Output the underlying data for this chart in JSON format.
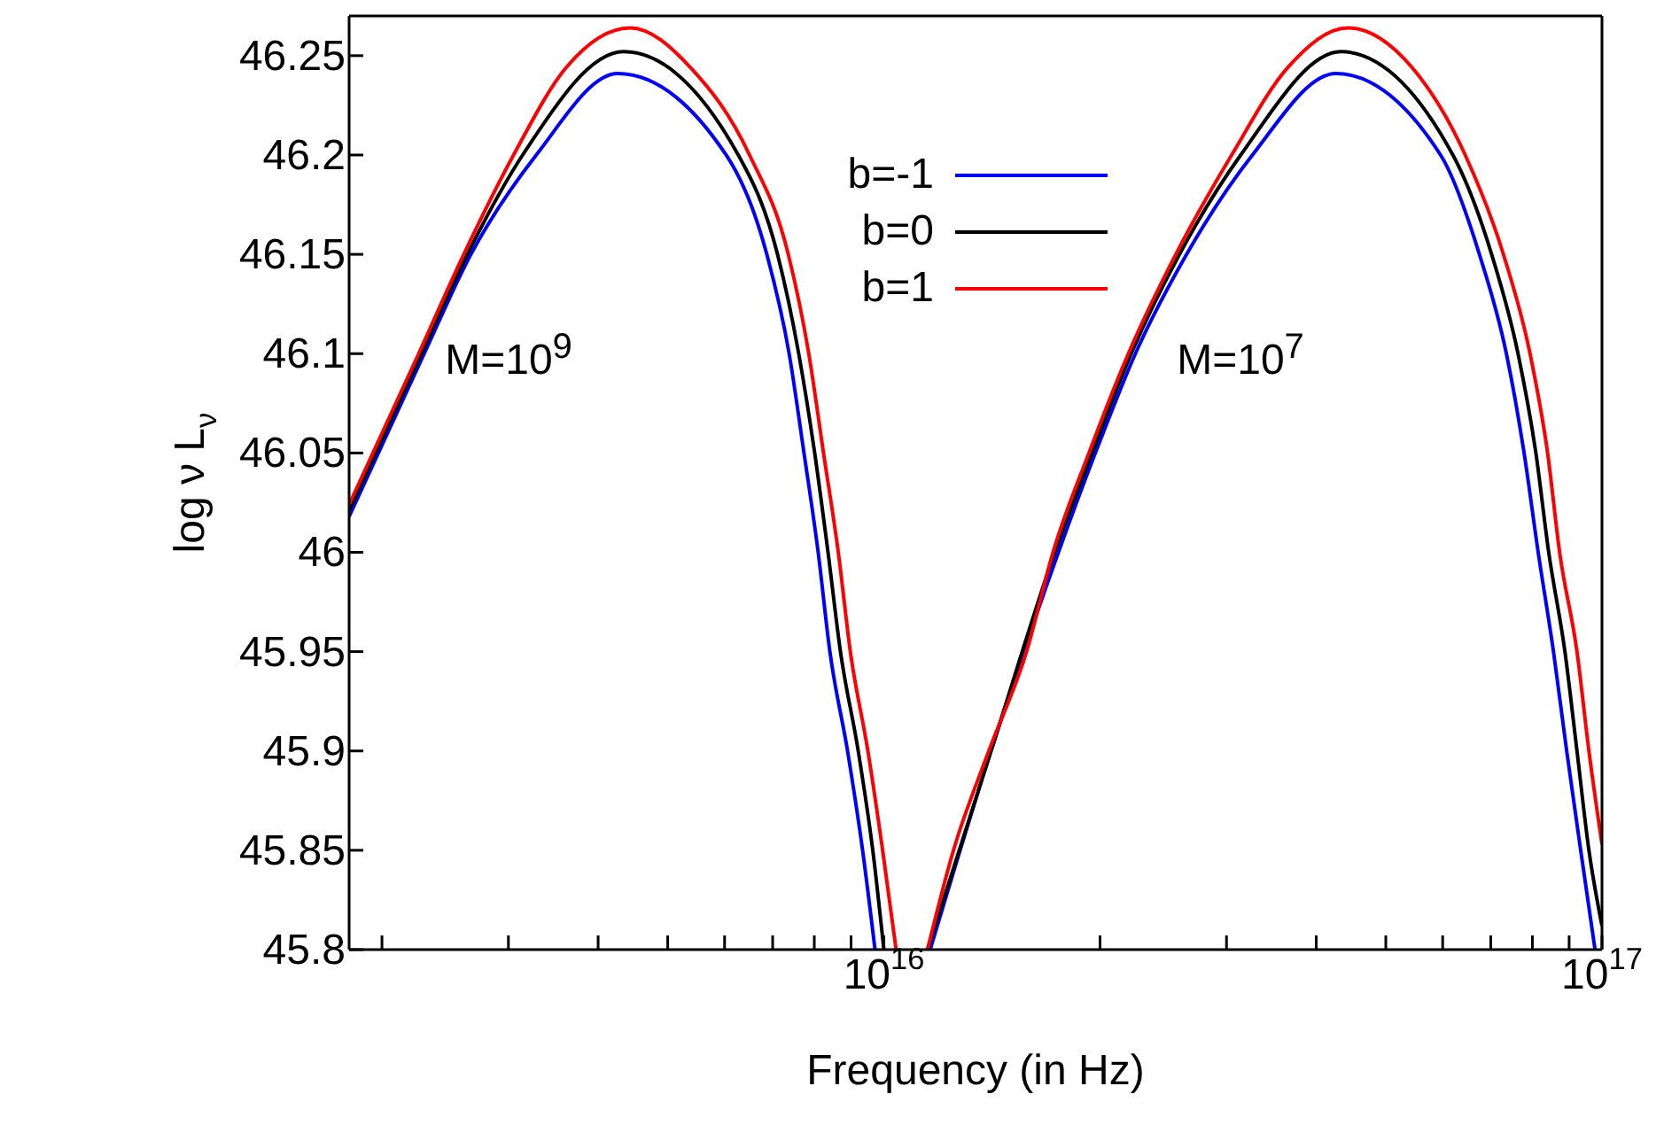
{
  "chart_data": {
    "type": "line",
    "xlabel": "Frequency (in Hz)",
    "ylabel": "log ν L$_{ν}$",
    "log": "x",
    "legend": "top",
    "marker": "none",
    "line_style": "solid",
    "xlim": [
      1800000000000000.0,
      1e+17
    ],
    "ylim": [
      45.8,
      46.27
    ],
    "xticks": [
      {
        "value": 2000000000000000.0,
        "label": null
      },
      {
        "value": 3000000000000000.0,
        "label": null
      },
      {
        "value": 4000000000000000.0,
        "label": null
      },
      {
        "value": 5000000000000000.0,
        "label": null
      },
      {
        "value": 6000000000000000.0,
        "label": null
      },
      {
        "value": 7000000000000000.0,
        "label": null
      },
      {
        "value": 8000000000000000.0,
        "label": null
      },
      {
        "value": 9000000000000000.0,
        "label": null
      },
      {
        "value": 1e+16,
        "label": "10$^{16}$"
      },
      {
        "value": 2e+16,
        "label": null
      },
      {
        "value": 3e+16,
        "label": null
      },
      {
        "value": 4e+16,
        "label": null
      },
      {
        "value": 5e+16,
        "label": null
      },
      {
        "value": 6e+16,
        "label": null
      },
      {
        "value": 7e+16,
        "label": null
      },
      {
        "value": 8e+16,
        "label": null
      },
      {
        "value": 9e+16,
        "label": null
      },
      {
        "value": 1e+17,
        "label": "10$^{17}$"
      }
    ],
    "yticks": [
      45.8,
      45.85,
      45.9,
      45.95,
      46,
      46.05,
      46.1,
      46.15,
      46.2,
      46.25
    ],
    "annotations": [
      "M=10$^{9}$",
      "M=10$^{7}$"
    ],
    "series": [
      {
        "name": "b=-1",
        "color": "#0000ff",
        "x": [
          1800000000000000.0,
          2290000000000000.0,
          2660000000000000.0,
          3280000000000000.0,
          4260000000000000.0,
          6030000000000000.0,
          6870000000000000.0,
          7380000000000000.0,
          7740000000000000.0,
          8100000000000000.0,
          8410000000000000.0,
          8900000000000000.0,
          9340000000000000.0,
          9720000000000000.0
        ],
        "values": [
          46.018,
          46.1,
          46.15,
          46.2,
          46.241,
          46.2,
          46.15,
          46.1,
          46.05,
          46,
          45.95,
          45.9,
          45.85,
          45.8
        ]
      },
      {
        "name": "b=0",
        "color": "#000000",
        "x": [
          1800000000000000.0,
          2270000000000000.0,
          2630000000000000.0,
          3140000000000000.0,
          4340000000000000.0,
          6270000000000000.0,
          7110000000000000.0,
          7610000000000000.0,
          8010000000000000.0,
          8360000000000000.0,
          8700000000000000.0,
          9210000000000000.0,
          9650000000000000.0,
          1e+16
        ],
        "values": [
          46.021,
          46.1,
          46.15,
          46.2,
          46.252,
          46.2,
          46.15,
          46.1,
          46.05,
          46,
          45.95,
          45.9,
          45.85,
          45.8
        ]
      },
      {
        "name": "b=1",
        "color": "#ff0000",
        "x": [
          1800000000000000.0,
          2250000000000000.0,
          2600000000000000.0,
          3050000000000000.0,
          3610000000000000.0,
          4430000000000000.0,
          5380000000000000.0,
          6500000000000000.0,
          7360000000000000.0,
          7860000000000000.0,
          8240000000000000.0,
          8640000000000000.0,
          8980000000000000.0,
          9500000000000000.0,
          9960000000000000.0,
          1.04e+16
        ],
        "values": [
          46.024,
          46.1,
          46.15,
          46.2,
          46.244,
          46.264,
          46.244,
          46.2,
          46.15,
          46.1,
          46.05,
          46,
          45.95,
          45.9,
          45.85,
          45.8
        ]
      },
      {
        "color": "#0000ff",
        "x": [
          1.16e+16,
          1.41e+16,
          1.75e+16,
          1.97e+16,
          2.24e+16,
          2.64e+16,
          3.26e+16,
          4.26e+16,
          5.96e+16,
          6.75e+16,
          7.36e+16,
          7.79e+16,
          8.15e+16,
          8.56e+16,
          8.93e+16,
          9.34e+16,
          9.78e+16
        ],
        "values": [
          45.8,
          45.9,
          46,
          46.05,
          46.1,
          46.15,
          46.2,
          46.241,
          46.2,
          46.15,
          46.1,
          46.05,
          46,
          45.95,
          45.9,
          45.85,
          45.8
        ]
      },
      {
        "color": "#000000",
        "x": [
          1.15e+16,
          1.41e+16,
          1.73e+16,
          1.95e+16,
          2.21e+16,
          2.58e+16,
          3.14e+16,
          4.33e+16,
          6.2e+16,
          7.02e+16,
          7.64e+16,
          8.09e+16,
          8.43e+16,
          8.88e+16,
          9.23e+16,
          9.59e+16,
          1e+17
        ],
        "values": [
          45.8,
          45.9,
          46,
          46.05,
          46.1,
          46.15,
          46.2,
          46.252,
          46.2,
          46.15,
          46.1,
          46.05,
          46,
          45.95,
          45.9,
          45.85,
          45.812
        ]
      },
      {
        "color": "#ff0000",
        "x": [
          1.15e+16,
          1.25e+16,
          1.4e+16,
          1.58e+16,
          1.72e+16,
          1.93e+16,
          2.19e+16,
          2.55e+16,
          3.05e+16,
          3.65e+16,
          4.43e+16,
          5.44e+16,
          6.45e+16,
          7.29e+16,
          7.94e+16,
          8.4e+16,
          8.73e+16,
          9.23e+16,
          9.59e+16,
          1e+17
        ],
        "values": [
          45.8,
          45.85,
          45.9,
          45.95,
          46,
          46.05,
          46.1,
          46.15,
          46.2,
          46.244,
          46.264,
          46.244,
          46.2,
          46.15,
          46.1,
          46.05,
          46,
          45.95,
          45.9,
          45.853
        ]
      }
    ]
  }
}
